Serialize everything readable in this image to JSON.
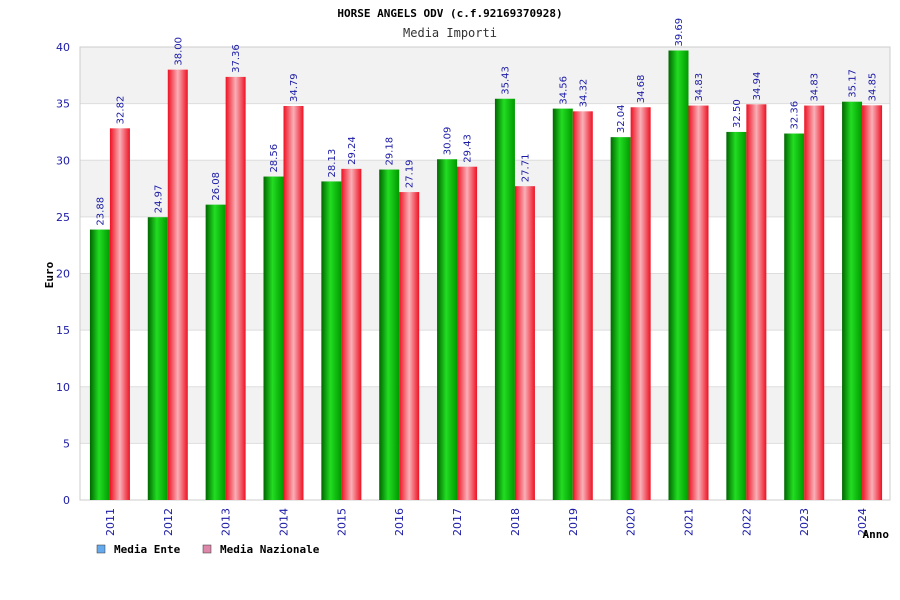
{
  "chart_data": {
    "type": "bar",
    "title": "HORSE ANGELS ODV (c.f.92169370928)",
    "subtitle": "Media Importi",
    "xlabel": "Anno",
    "ylabel": "Euro",
    "ylim": [
      0,
      40
    ],
    "yticks": [
      0,
      5,
      10,
      15,
      20,
      25,
      30,
      35,
      40
    ],
    "categories": [
      "2011",
      "2012",
      "2013",
      "2014",
      "2015",
      "2016",
      "2017",
      "2018",
      "2019",
      "2020",
      "2021",
      "2022",
      "2023",
      "2024"
    ],
    "series": [
      {
        "name": "Media Ente",
        "color": "#00aa00",
        "legend_color": "#66aaee",
        "values": [
          23.88,
          24.97,
          26.08,
          28.56,
          28.13,
          29.18,
          30.09,
          35.43,
          34.56,
          32.04,
          39.69,
          32.5,
          32.36,
          35.17
        ],
        "labels": [
          "23.88",
          "24.97",
          "26.08",
          "28.56",
          "28.13",
          "29.18",
          "30.09",
          "35.43",
          "34.56",
          "32.04",
          "39.69",
          "32.50",
          "32.36",
          "35.17"
        ]
      },
      {
        "name": "Media Nazionale",
        "color": "#ee1122",
        "legend_color": "#dd88aa",
        "values": [
          32.82,
          38.0,
          37.36,
          34.79,
          29.24,
          27.19,
          29.43,
          27.71,
          34.32,
          34.68,
          34.83,
          34.94,
          34.83,
          34.85
        ],
        "labels": [
          "32.82",
          "38.00",
          "37.36",
          "34.79",
          "29.24",
          "27.19",
          "29.43",
          "27.71",
          "34.32",
          "34.68",
          "34.83",
          "34.94",
          "34.83",
          "34.85"
        ]
      }
    ],
    "grid": true,
    "legend_position": "bottom-left"
  }
}
